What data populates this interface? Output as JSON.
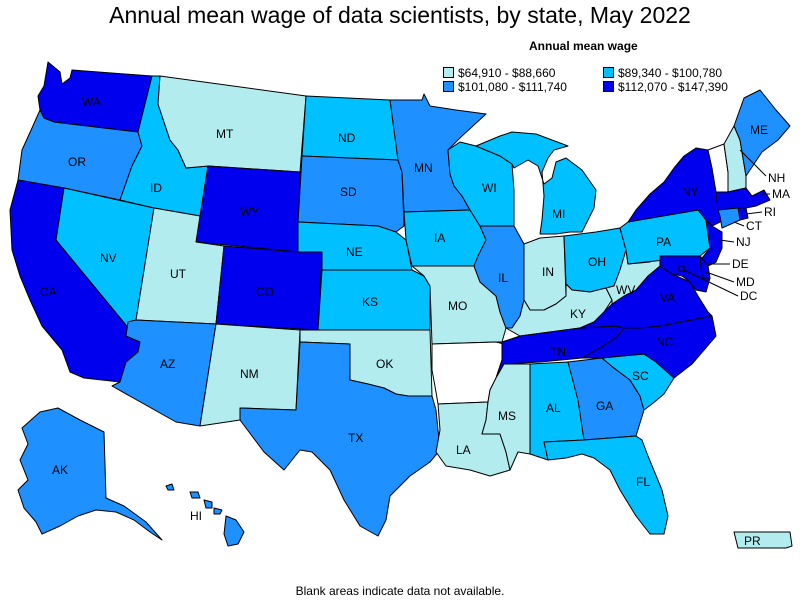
{
  "title": "Annual mean wage of data scientists, by state, May 2022",
  "legend": {
    "title": "Annual mean wage",
    "items": [
      {
        "key": "t1",
        "label": "$64,910 - $88,660",
        "color": "#b2ecee"
      },
      {
        "key": "t2",
        "label": "$89,340 - $100,780",
        "color": "#00c0ff"
      },
      {
        "key": "t3",
        "label": "$101,080 - $111,740",
        "color": "#1e90ff"
      },
      {
        "key": "t4",
        "label": "$112,070 - $147,390",
        "color": "#0000ee"
      }
    ]
  },
  "colors": {
    "none": "#ffffff",
    "border": "#000000"
  },
  "states": {
    "WA": {
      "label": "WA",
      "tier": "t4"
    },
    "OR": {
      "label": "OR",
      "tier": "t3"
    },
    "CA": {
      "label": "CA",
      "tier": "t4"
    },
    "NV": {
      "label": "NV",
      "tier": "t2"
    },
    "ID": {
      "label": "ID",
      "tier": "t2"
    },
    "MT": {
      "label": "MT",
      "tier": "t1"
    },
    "WY": {
      "label": "WY",
      "tier": "t4"
    },
    "UT": {
      "label": "UT",
      "tier": "t1"
    },
    "AZ": {
      "label": "AZ",
      "tier": "t3"
    },
    "CO": {
      "label": "CO",
      "tier": "t4"
    },
    "NM": {
      "label": "NM",
      "tier": "t1"
    },
    "ND": {
      "label": "ND",
      "tier": "t2"
    },
    "SD": {
      "label": "SD",
      "tier": "t3"
    },
    "NE": {
      "label": "NE",
      "tier": "t2"
    },
    "KS": {
      "label": "KS",
      "tier": "t2"
    },
    "OK": {
      "label": "OK",
      "tier": "t1"
    },
    "TX": {
      "label": "TX",
      "tier": "t3"
    },
    "MN": {
      "label": "MN",
      "tier": "t3"
    },
    "IA": {
      "label": "IA",
      "tier": "t2"
    },
    "MO": {
      "label": "MO",
      "tier": "t1"
    },
    "AR": {
      "label": "",
      "tier": "none"
    },
    "LA": {
      "label": "LA",
      "tier": "t1"
    },
    "WI": {
      "label": "WI",
      "tier": "t2"
    },
    "IL": {
      "label": "IL",
      "tier": "t3"
    },
    "MI": {
      "label": "MI",
      "tier": "t2"
    },
    "IN": {
      "label": "IN",
      "tier": "t1"
    },
    "OH": {
      "label": "OH",
      "tier": "t2"
    },
    "KY": {
      "label": "KY",
      "tier": "t1"
    },
    "TN": {
      "label": "TN",
      "tier": "t4"
    },
    "MS": {
      "label": "MS",
      "tier": "t1"
    },
    "AL": {
      "label": "AL",
      "tier": "t2"
    },
    "GA": {
      "label": "GA",
      "tier": "t3"
    },
    "FL": {
      "label": "FL",
      "tier": "t2"
    },
    "SC": {
      "label": "SC",
      "tier": "t2"
    },
    "NC": {
      "label": "NC",
      "tier": "t4"
    },
    "VA": {
      "label": "VA",
      "tier": "t4"
    },
    "WV": {
      "label": "WV",
      "tier": "t1"
    },
    "PA": {
      "label": "PA",
      "tier": "t2"
    },
    "NY": {
      "label": "NY",
      "tier": "t4"
    },
    "VT": {
      "label": "",
      "tier": "none"
    },
    "NH": {
      "label": "NH",
      "tier": "t1"
    },
    "ME": {
      "label": "ME",
      "tier": "t3"
    },
    "MA": {
      "label": "MA",
      "tier": "t4"
    },
    "RI": {
      "label": "RI",
      "tier": "t4"
    },
    "CT": {
      "label": "CT",
      "tier": "t3"
    },
    "NJ": {
      "label": "NJ",
      "tier": "t4"
    },
    "DE": {
      "label": "DE",
      "tier": "t4"
    },
    "MD": {
      "label": "MD",
      "tier": "t4"
    },
    "DC": {
      "label": "DC",
      "tier": "t4"
    },
    "AK": {
      "label": "AK",
      "tier": "t3"
    },
    "HI": {
      "label": "HI",
      "tier": "t3"
    },
    "PR": {
      "label": "PR",
      "tier": "t1"
    }
  },
  "footnote": "Blank areas indicate data not available."
}
